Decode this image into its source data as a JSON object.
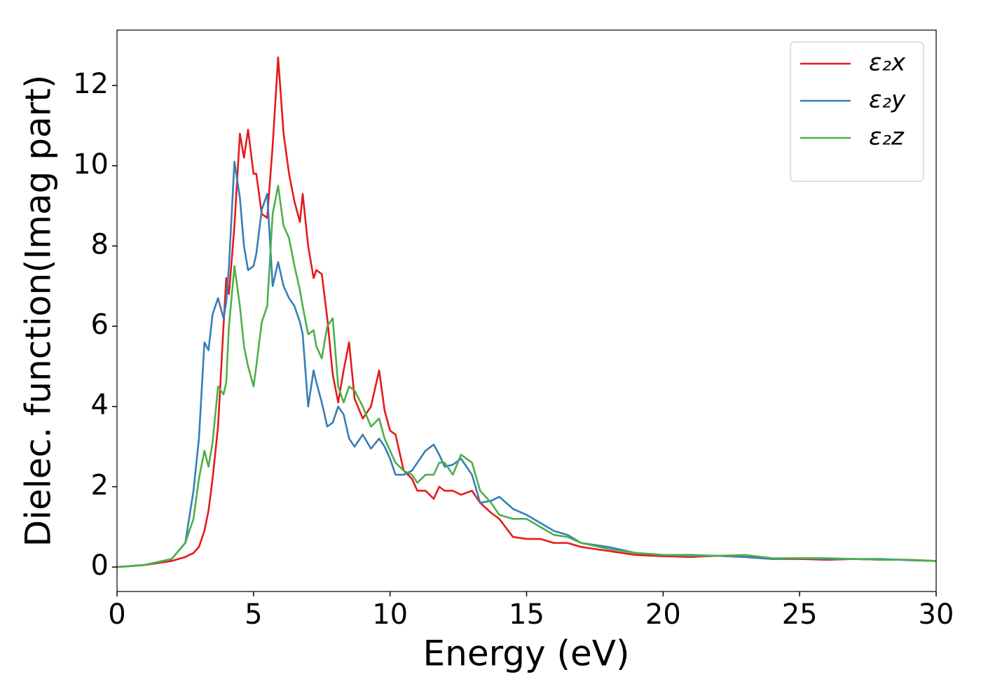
{
  "chart_data": {
    "type": "line",
    "xlabel": "Energy (eV)",
    "ylabel": "Dielec. function(Imag part)",
    "xlim": [
      0,
      30
    ],
    "xticks": [
      0,
      5,
      10,
      15,
      20,
      25,
      30
    ],
    "ylim": [
      -0.61,
      13.38
    ],
    "yticks": [
      0,
      2,
      4,
      6,
      8,
      10,
      12
    ],
    "grid": false,
    "legend": "upper right",
    "x": [
      0,
      1,
      2,
      2.5,
      2.8,
      3.0,
      3.2,
      3.35,
      3.5,
      3.7,
      3.9,
      4.0,
      4.1,
      4.3,
      4.5,
      4.65,
      4.8,
      5.0,
      5.1,
      5.3,
      5.5,
      5.7,
      5.9,
      6.1,
      6.3,
      6.5,
      6.7,
      6.8,
      7.0,
      7.2,
      7.3,
      7.5,
      7.7,
      7.9,
      8.1,
      8.3,
      8.5,
      8.7,
      9.0,
      9.3,
      9.6,
      9.8,
      10.0,
      10.2,
      10.5,
      10.8,
      11.0,
      11.3,
      11.6,
      11.8,
      12.0,
      12.3,
      12.6,
      13.0,
      13.3,
      13.7,
      14.0,
      14.5,
      15.0,
      15.5,
      16.0,
      16.5,
      17.0,
      18,
      19,
      20,
      21,
      22,
      23,
      24,
      25,
      26,
      27,
      28,
      29,
      30
    ],
    "series": [
      {
        "name": "ε₂x",
        "color": "#e41a1c",
        "values": [
          0,
          0.05,
          0.15,
          0.25,
          0.35,
          0.5,
          0.9,
          1.4,
          2.2,
          3.5,
          6.0,
          7.2,
          6.8,
          8.5,
          10.8,
          10.2,
          10.9,
          9.8,
          9.8,
          8.8,
          8.7,
          10.5,
          12.7,
          10.8,
          9.8,
          9.1,
          8.6,
          9.3,
          8.0,
          7.2,
          7.4,
          7.3,
          6.2,
          4.8,
          4.1,
          4.9,
          5.6,
          4.2,
          3.7,
          4.0,
          4.9,
          3.9,
          3.4,
          3.3,
          2.4,
          2.2,
          1.9,
          1.9,
          1.7,
          2.0,
          1.9,
          1.9,
          1.8,
          1.9,
          1.6,
          1.35,
          1.2,
          0.75,
          0.7,
          0.7,
          0.6,
          0.6,
          0.5,
          0.4,
          0.3,
          0.27,
          0.25,
          0.28,
          0.25,
          0.2,
          0.2,
          0.18,
          0.2,
          0.18,
          0.18,
          0.15
        ]
      },
      {
        "name": "ε₂y",
        "color": "#377eb8",
        "values": [
          0,
          0.05,
          0.2,
          0.6,
          1.9,
          3.2,
          5.6,
          5.4,
          6.3,
          6.7,
          6.2,
          6.6,
          7.5,
          10.1,
          9.2,
          8.0,
          7.4,
          7.5,
          7.8,
          8.9,
          9.3,
          7.0,
          7.6,
          7.0,
          6.7,
          6.5,
          6.1,
          5.8,
          4.0,
          4.9,
          4.6,
          4.1,
          3.5,
          3.6,
          4.0,
          3.8,
          3.2,
          3.0,
          3.3,
          2.95,
          3.2,
          3.0,
          2.7,
          2.3,
          2.3,
          2.4,
          2.6,
          2.9,
          3.05,
          2.8,
          2.5,
          2.55,
          2.7,
          2.3,
          1.6,
          1.65,
          1.75,
          1.45,
          1.3,
          1.1,
          0.9,
          0.8,
          0.6,
          0.5,
          0.35,
          0.3,
          0.3,
          0.28,
          0.25,
          0.2,
          0.22,
          0.2,
          0.2,
          0.2,
          0.17,
          0.15
        ]
      },
      {
        "name": "ε₂z",
        "color": "#4daf4a",
        "values": [
          0,
          0.05,
          0.2,
          0.6,
          1.2,
          2.2,
          2.9,
          2.5,
          3.1,
          4.5,
          4.3,
          4.6,
          6.0,
          7.5,
          6.5,
          5.5,
          5.0,
          4.5,
          5.0,
          6.1,
          6.5,
          8.8,
          9.5,
          8.5,
          8.2,
          7.5,
          6.9,
          6.5,
          5.8,
          5.9,
          5.5,
          5.2,
          6.0,
          6.2,
          4.5,
          4.1,
          4.5,
          4.4,
          4.0,
          3.5,
          3.7,
          3.2,
          2.9,
          2.6,
          2.4,
          2.3,
          2.1,
          2.3,
          2.3,
          2.6,
          2.6,
          2.3,
          2.8,
          2.6,
          1.9,
          1.6,
          1.3,
          1.2,
          1.2,
          1.0,
          0.8,
          0.75,
          0.6,
          0.45,
          0.35,
          0.3,
          0.28,
          0.28,
          0.3,
          0.22,
          0.22,
          0.22,
          0.2,
          0.18,
          0.18,
          0.15
        ]
      }
    ]
  }
}
